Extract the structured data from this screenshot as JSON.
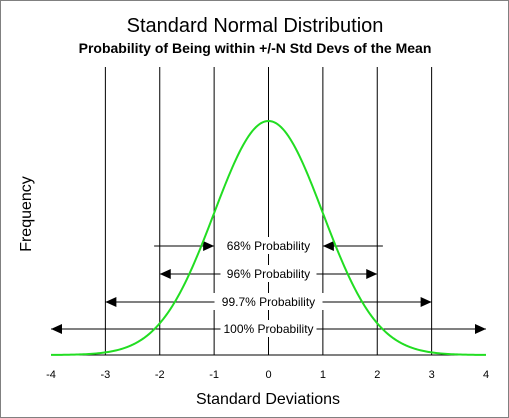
{
  "chart_data": {
    "type": "line",
    "title": "Standard Normal Distribution",
    "subtitle": "Probability of Being within +/-N Std Devs of the Mean",
    "xlabel": "Standard Deviations",
    "ylabel": "Frequency",
    "xlim": [
      -4,
      4
    ],
    "ylim": [
      0,
      0.4
    ],
    "grid": {
      "vertical": true,
      "horizontal": false
    },
    "x_ticks": [
      "-4",
      "-3",
      "-2",
      "-1",
      "0",
      "1",
      "2",
      "3",
      "4"
    ],
    "series": [
      {
        "color": "#22dd22",
        "x": [
          -4,
          -3.5,
          -3,
          -2.5,
          -2,
          -1.5,
          -1,
          -0.5,
          0,
          0.5,
          1,
          1.5,
          2,
          2.5,
          3,
          3.5,
          4
        ],
        "y": [
          0.0001,
          0.0009,
          0.0044,
          0.0175,
          0.054,
          0.1295,
          0.242,
          0.3521,
          0.3989,
          0.3521,
          0.242,
          0.1295,
          0.054,
          0.0175,
          0.0044,
          0.0009,
          0.0001
        ]
      }
    ],
    "annotations": [
      {
        "label": "68% Probability",
        "from": -1,
        "to": 1
      },
      {
        "label": "96% Probability",
        "from": -2,
        "to": 2
      },
      {
        "label": "99.7% Probability",
        "from": -3,
        "to": 3
      },
      {
        "label": "100% Probability",
        "from": -4,
        "to": 4
      }
    ]
  }
}
